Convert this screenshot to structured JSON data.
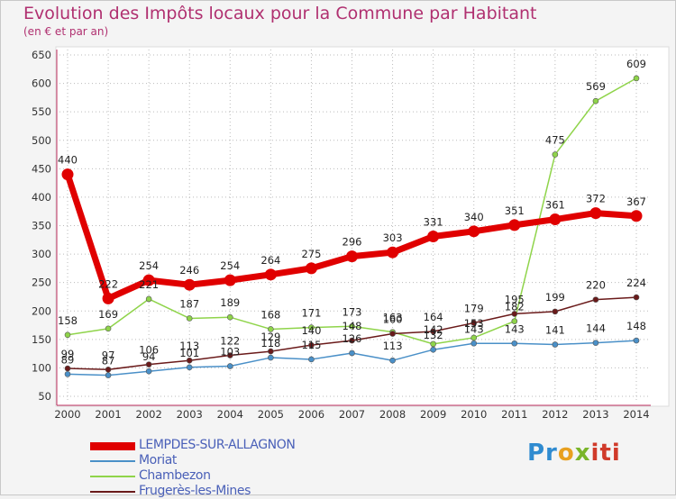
{
  "chart_data": {
    "type": "line",
    "title": "Evolution des Impôts locaux pour la Commune par Habitant",
    "subtitle": "(en € et par an)",
    "x": [
      "2000",
      "2001",
      "2002",
      "2003",
      "2004",
      "2005",
      "2006",
      "2007",
      "2008",
      "2009",
      "2010",
      "2011",
      "2012",
      "2013",
      "2014"
    ],
    "ylim": [
      50,
      650
    ],
    "yticks": [
      50,
      100,
      150,
      200,
      250,
      300,
      350,
      400,
      450,
      500,
      550,
      600,
      650
    ],
    "grid": true,
    "legend_position": "bottom-left",
    "series": [
      {
        "name": "LEMPDES-SUR-ALLAGNON",
        "color": "#e00000",
        "values": [
          440,
          222,
          254,
          246,
          254,
          264,
          275,
          296,
          303,
          331,
          340,
          351,
          361,
          372,
          367
        ],
        "labels": [
          "440",
          "222",
          "254",
          "246",
          "254",
          "264",
          "275",
          "296",
          "303",
          "331",
          "340",
          "351",
          "361",
          "372",
          "367"
        ]
      },
      {
        "name": "Moriat",
        "color": "#4a90c8",
        "values": [
          89,
          87,
          94,
          101,
          103,
          118,
          115,
          126,
          113,
          132,
          143,
          143,
          141,
          144,
          148
        ],
        "labels": [
          "89",
          "87",
          "94",
          "101",
          "103",
          "118",
          "115",
          "126",
          "113",
          "132",
          "143",
          "143",
          "141",
          "144",
          "148"
        ]
      },
      {
        "name": "Chambezon",
        "color": "#8fd44a",
        "values": [
          158,
          169,
          221,
          187,
          189,
          168,
          171,
          173,
          163,
          142,
          153,
          182,
          475,
          569,
          609
        ],
        "labels": [
          "158",
          "169",
          "221",
          "187",
          "189",
          "168",
          "171",
          "173",
          "163",
          "142",
          "153",
          "182",
          "475",
          "569",
          "609"
        ]
      },
      {
        "name": "Frugerès-les-Mines",
        "color": "#6a1a1a",
        "values": [
          99,
          97,
          106,
          113,
          122,
          129,
          140,
          148,
          160,
          164,
          179,
          195,
          199,
          220,
          224
        ],
        "labels": [
          "99",
          "97",
          "106",
          "113",
          "122",
          "129",
          "140",
          "148",
          "160",
          "164",
          "179",
          "195",
          "199",
          "220",
          "224"
        ]
      }
    ]
  },
  "logo": {
    "p1": "Pr",
    "p2": "o",
    "p3": "x",
    "p4": "iti"
  }
}
